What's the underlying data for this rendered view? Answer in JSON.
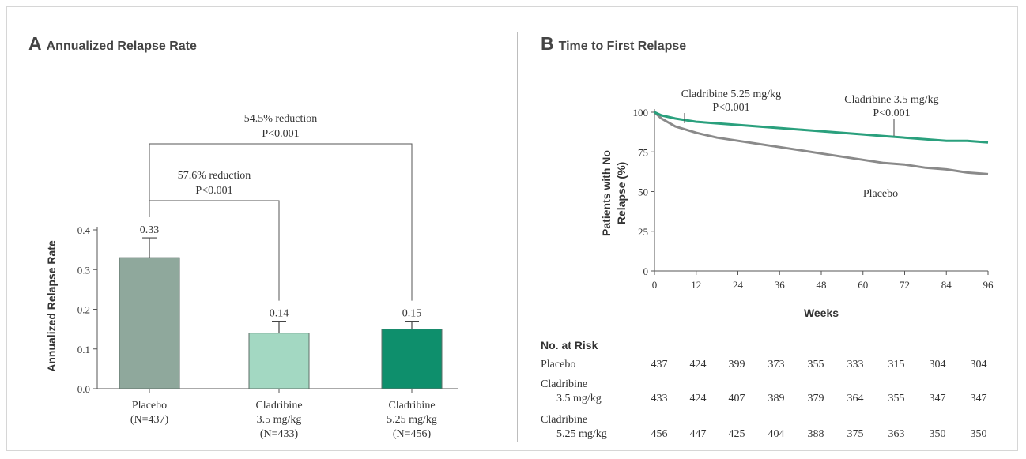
{
  "panel_a": {
    "letter": "A",
    "title": "Annualized Relapse Rate",
    "chart_data": {
      "type": "bar",
      "title": "Annualized Relapse Rate",
      "ylabel": "Annualized Relapse Rate",
      "ylim": [
        0,
        0.4
      ],
      "yticks": [
        "0.0",
        "0.1",
        "0.2",
        "0.3",
        "0.4"
      ],
      "categories": [
        {
          "line1": "Placebo",
          "line2": "(N=437)",
          "line3": ""
        },
        {
          "line1": "Cladribine",
          "line2": "3.5 mg/kg",
          "line3": "(N=433)"
        },
        {
          "line1": "Cladribine",
          "line2": "5.25 mg/kg",
          "line3": "(N=456)"
        }
      ],
      "values": [
        0.33,
        0.14,
        0.15
      ],
      "value_labels": [
        "0.33",
        "0.14",
        "0.15"
      ],
      "error_upper": [
        0.38,
        0.17,
        0.17
      ],
      "colors": [
        "#8fa89c",
        "#a3d8c2",
        "#0e8f6c"
      ],
      "comparisons": [
        {
          "line1": "57.6% reduction",
          "line2": "P<0.001",
          "from": 0,
          "to": 1
        },
        {
          "line1": "54.5% reduction",
          "line2": "P<0.001",
          "from": 0,
          "to": 2
        }
      ]
    }
  },
  "panel_b": {
    "letter": "B",
    "title": "Time to First Relapse",
    "chart_data": {
      "type": "line",
      "title": "Time to First Relapse",
      "ylabel_line1": "Patients with No",
      "ylabel_line2": "Relapse (%)",
      "xlabel": "Weeks",
      "xlim": [
        0,
        96
      ],
      "ylim": [
        0,
        100
      ],
      "xticks": [
        "0",
        "12",
        "24",
        "36",
        "48",
        "60",
        "72",
        "84",
        "96"
      ],
      "yticks": [
        "0",
        "25",
        "50",
        "75",
        "100"
      ],
      "series": [
        {
          "name": "Placebo",
          "color": "#8a8a8a",
          "x": [
            0,
            2,
            6,
            12,
            18,
            24,
            30,
            36,
            42,
            48,
            54,
            60,
            66,
            72,
            78,
            84,
            90,
            96
          ],
          "y": [
            100,
            96,
            91,
            87,
            84,
            82,
            80,
            78,
            76,
            74,
            72,
            70,
            68,
            67,
            65,
            64,
            62,
            61
          ]
        },
        {
          "name": "Cladribine 3.5 mg/kg",
          "color": "#2aa07d",
          "x": [
            0,
            2,
            6,
            12,
            18,
            24,
            30,
            36,
            42,
            48,
            54,
            60,
            66,
            72,
            78,
            84,
            90,
            96
          ],
          "y": [
            100,
            98,
            96,
            94,
            93,
            92,
            91,
            90,
            89,
            88,
            87,
            86,
            85,
            84,
            83,
            82,
            82,
            81
          ]
        }
      ],
      "annotations": [
        {
          "line1": "Cladribine 5.25 mg/kg",
          "line2": "P<0.001"
        },
        {
          "line1": "Cladribine 3.5 mg/kg",
          "line2": "P<0.001"
        },
        {
          "line1": "Placebo",
          "line2": ""
        }
      ]
    },
    "risk_table": {
      "header": "No. at Risk",
      "rows": [
        {
          "label1": "Placebo",
          "label2": "",
          "values": [
            "437",
            "424",
            "399",
            "373",
            "355",
            "333",
            "315",
            "304",
            "304"
          ]
        },
        {
          "label1": "Cladribine",
          "label2": "3.5 mg/kg",
          "values": [
            "433",
            "424",
            "407",
            "389",
            "379",
            "364",
            "355",
            "347",
            "347"
          ]
        },
        {
          "label1": "Cladribine",
          "label2": "5.25 mg/kg",
          "values": [
            "456",
            "447",
            "425",
            "404",
            "388",
            "375",
            "363",
            "350",
            "350"
          ]
        }
      ]
    }
  }
}
